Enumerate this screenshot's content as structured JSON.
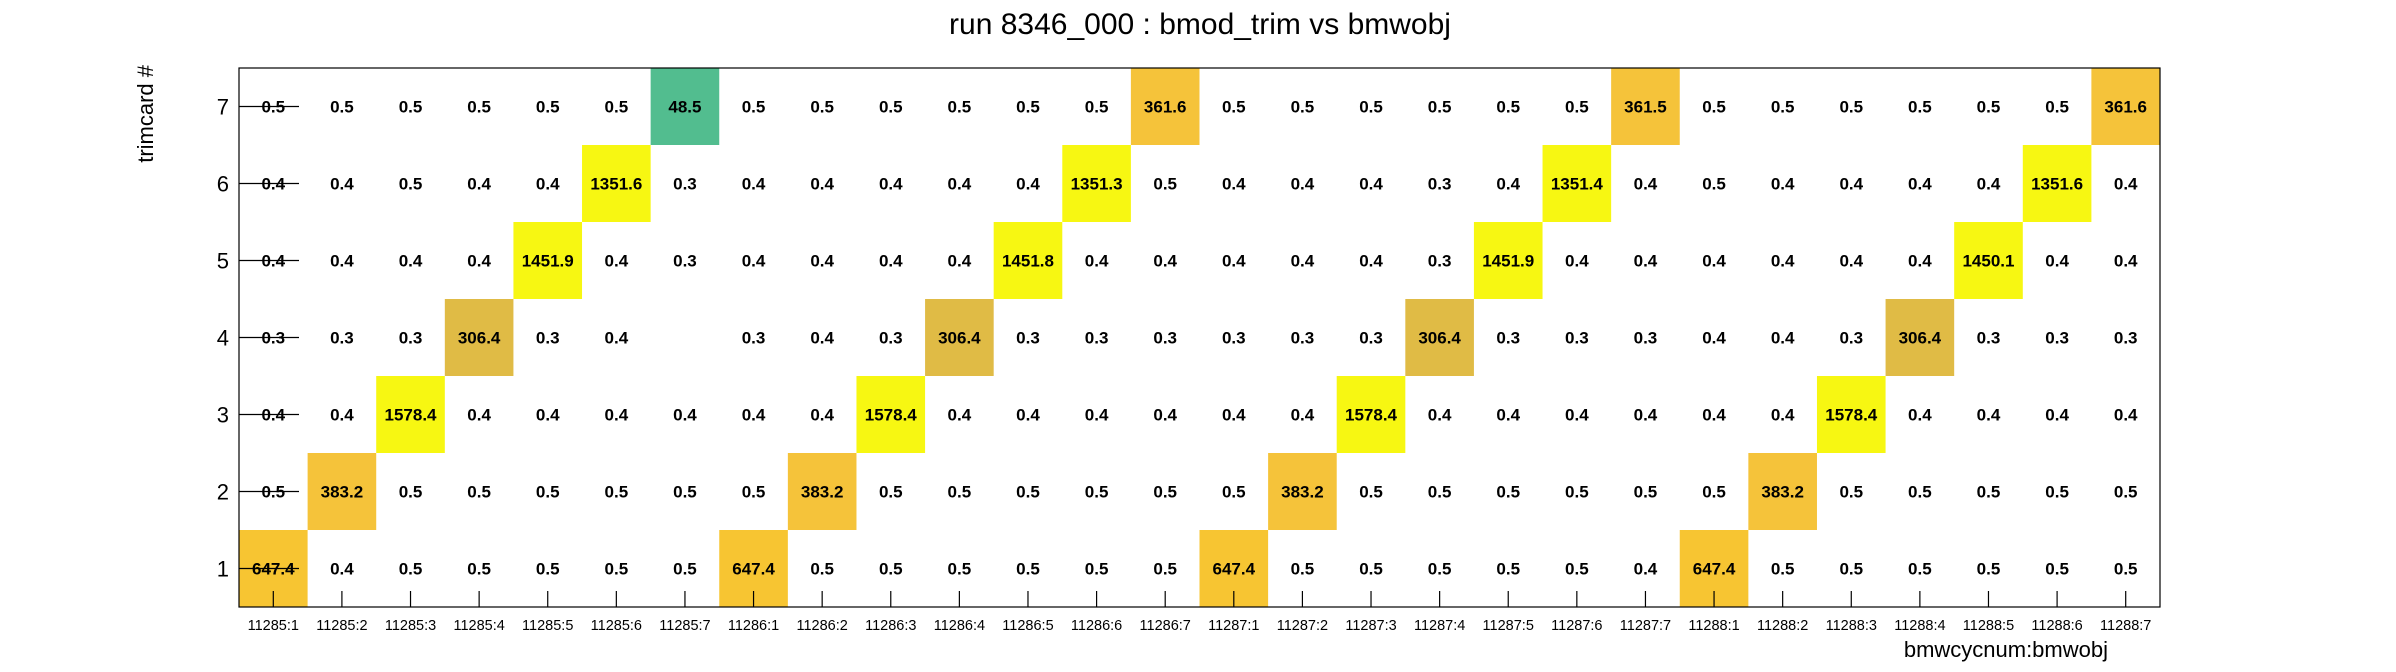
{
  "chart_data": {
    "type": "heatmap",
    "title": "run 8346_000 : bmod_trim vs bmwobj",
    "xlabel": "bmwcycnum:bmwobj",
    "ylabel": "trimcard #",
    "categories": [
      "11285:1",
      "11285:2",
      "11285:3",
      "11285:4",
      "11285:5",
      "11285:6",
      "11285:7",
      "11286:1",
      "11286:2",
      "11286:3",
      "11286:4",
      "11286:5",
      "11286:6",
      "11286:7",
      "11287:1",
      "11287:2",
      "11287:3",
      "11287:4",
      "11287:5",
      "11287:6",
      "11287:7",
      "11288:1",
      "11288:2",
      "11288:3",
      "11288:4",
      "11288:5",
      "11288:6",
      "11288:7"
    ],
    "y_categories": [
      "1",
      "2",
      "3",
      "4",
      "5",
      "6",
      "7"
    ],
    "rows": [
      {
        "y": "7",
        "values": [
          "0.5",
          "0.5",
          "0.5",
          "0.5",
          "0.5",
          "0.5",
          "48.5",
          "0.5",
          "0.5",
          "0.5",
          "0.5",
          "0.5",
          "0.5",
          "361.6",
          "0.5",
          "0.5",
          "0.5",
          "0.5",
          "0.5",
          "0.5",
          "361.5",
          "0.5",
          "0.5",
          "0.5",
          "0.5",
          "0.5",
          "0.5",
          "361.6"
        ]
      },
      {
        "y": "6",
        "values": [
          "0.4",
          "0.4",
          "0.5",
          "0.4",
          "0.4",
          "1351.6",
          "0.3",
          "0.4",
          "0.4",
          "0.4",
          "0.4",
          "0.4",
          "1351.3",
          "0.5",
          "0.4",
          "0.4",
          "0.4",
          "0.3",
          "0.4",
          "1351.4",
          "0.4",
          "0.5",
          "0.4",
          "0.4",
          "0.4",
          "0.4",
          "1351.6",
          "0.4"
        ]
      },
      {
        "y": "5",
        "values": [
          "0.4",
          "0.4",
          "0.4",
          "0.4",
          "1451.9",
          "0.4",
          "0.3",
          "0.4",
          "0.4",
          "0.4",
          "0.4",
          "1451.8",
          "0.4",
          "0.4",
          "0.4",
          "0.4",
          "0.4",
          "0.3",
          "1451.9",
          "0.4",
          "0.4",
          "0.4",
          "0.4",
          "0.4",
          "0.4",
          "1450.1",
          "0.4",
          "0.4"
        ]
      },
      {
        "y": "4",
        "values": [
          "0.3",
          "0.3",
          "0.3",
          "306.4",
          "0.3",
          "0.4",
          "",
          "0.3",
          "0.4",
          "0.3",
          "306.4",
          "0.3",
          "0.3",
          "0.3",
          "0.3",
          "0.3",
          "0.3",
          "306.4",
          "0.3",
          "0.3",
          "0.3",
          "0.4",
          "0.4",
          "0.3",
          "306.4",
          "0.3",
          "0.3",
          "0.3"
        ]
      },
      {
        "y": "3",
        "values": [
          "0.4",
          "0.4",
          "1578.4",
          "0.4",
          "0.4",
          "0.4",
          "0.4",
          "0.4",
          "0.4",
          "1578.4",
          "0.4",
          "0.4",
          "0.4",
          "0.4",
          "0.4",
          "0.4",
          "1578.4",
          "0.4",
          "0.4",
          "0.4",
          "0.4",
          "0.4",
          "0.4",
          "1578.4",
          "0.4",
          "0.4",
          "0.4",
          "0.4"
        ]
      },
      {
        "y": "2",
        "values": [
          "0.5",
          "383.2",
          "0.5",
          "0.5",
          "0.5",
          "0.5",
          "0.5",
          "0.5",
          "383.2",
          "0.5",
          "0.5",
          "0.5",
          "0.5",
          "0.5",
          "0.5",
          "383.2",
          "0.5",
          "0.5",
          "0.5",
          "0.5",
          "0.5",
          "0.5",
          "383.2",
          "0.5",
          "0.5",
          "0.5",
          "0.5",
          "0.5"
        ]
      },
      {
        "y": "1",
        "values": [
          "647.4",
          "0.4",
          "0.5",
          "0.5",
          "0.5",
          "0.5",
          "0.5",
          "647.4",
          "0.5",
          "0.5",
          "0.5",
          "0.5",
          "0.5",
          "0.5",
          "647.4",
          "0.5",
          "0.5",
          "0.5",
          "0.5",
          "0.5",
          "0.4",
          "647.4",
          "0.5",
          "0.5",
          "0.5",
          "0.5",
          "0.5",
          "0.5"
        ]
      }
    ],
    "highlight_colors": {
      "48.5": "#52bd8f",
      "306.4": "#e0bb45",
      "361.5": "#f5c33a",
      "361.6": "#f5c33a",
      "383.2": "#f5c33a",
      "647.4": "#f7c532",
      "1351.3": "#f7f712",
      "1351.4": "#f7f712",
      "1351.6": "#f7f712",
      "1450.1": "#f7f712",
      "1451.8": "#f7f712",
      "1451.9": "#f7f712",
      "1578.4": "#f7f712"
    },
    "grid": false,
    "legend": "none"
  }
}
